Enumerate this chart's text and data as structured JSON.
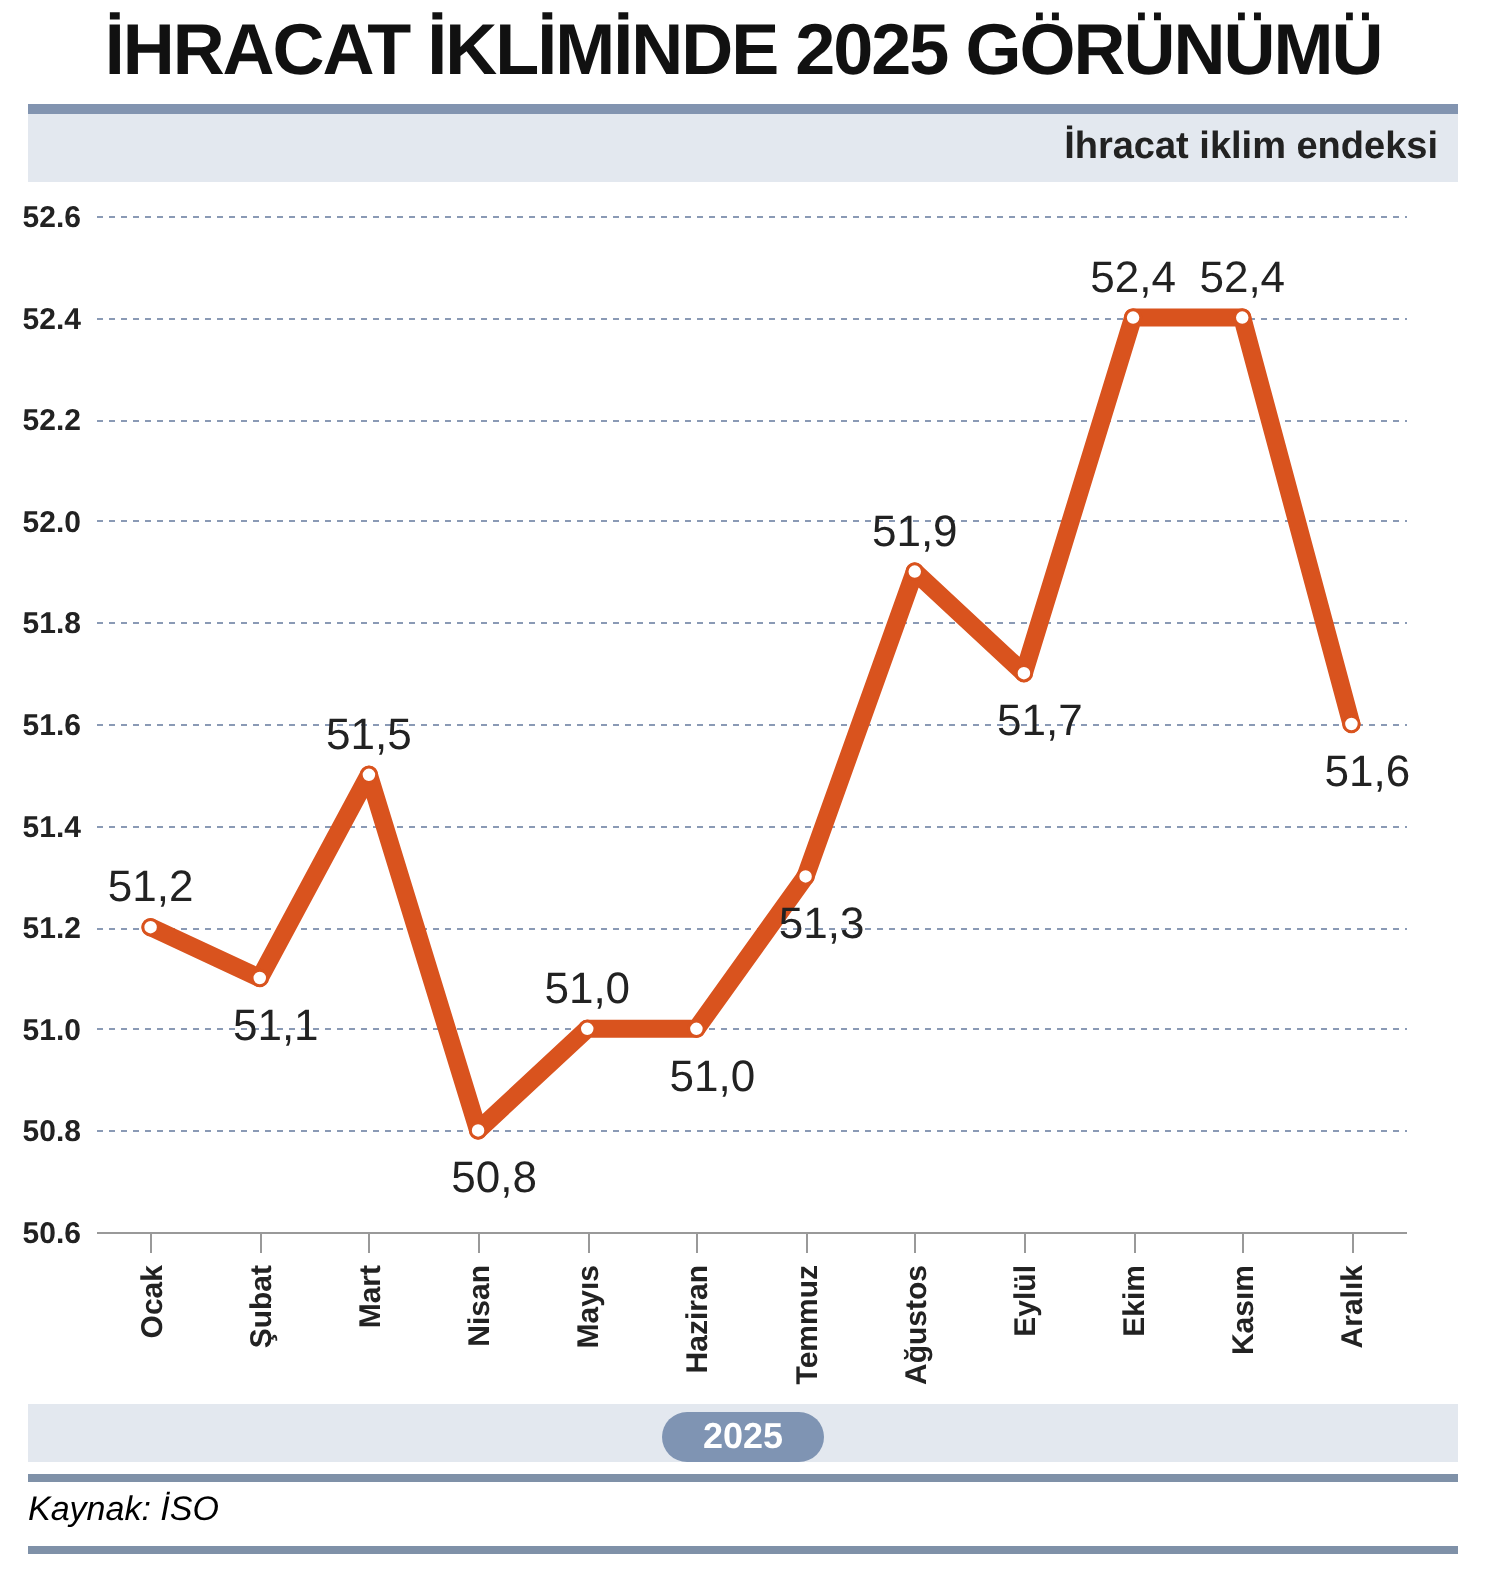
{
  "chart_data": {
    "type": "line",
    "title": "İHRACAT İKLİMİNDE 2025 GÖRÜNÜMÜ",
    "subtitle": "İhracat iklim endeksi",
    "xlabel": "2025",
    "categories": [
      "Ocak",
      "Şubat",
      "Mart",
      "Nisan",
      "Mayıs",
      "Haziran",
      "Temmuz",
      "Ağustos",
      "Eylül",
      "Ekim",
      "Kasım",
      "Aralık"
    ],
    "series": [
      {
        "color": "#d9531e",
        "values": [
          51.2,
          51.1,
          51.5,
          50.8,
          51.0,
          51.0,
          51.3,
          51.9,
          51.7,
          52.4,
          52.4,
          51.6
        ],
        "value_labels": [
          "51,2",
          "51,1",
          "51,5",
          "50,8",
          "51,0",
          "51,0",
          "51,3",
          "51,9",
          "51,7",
          "52,4",
          "52,4",
          "51,6"
        ]
      }
    ],
    "ylim": [
      50.6,
      52.6
    ],
    "yticks": [
      50.6,
      50.8,
      {
        "value": 51,
        "label": "51.0"
      },
      51.2,
      51.4,
      51.6,
      51.8,
      {
        "value": 52,
        "label": "52.0"
      },
      52.2,
      52.4,
      52.6
    ],
    "grid": "y",
    "marker": "circle",
    "line_style": "solid",
    "annotations": [
      "Kaynak: İSO"
    ]
  }
}
